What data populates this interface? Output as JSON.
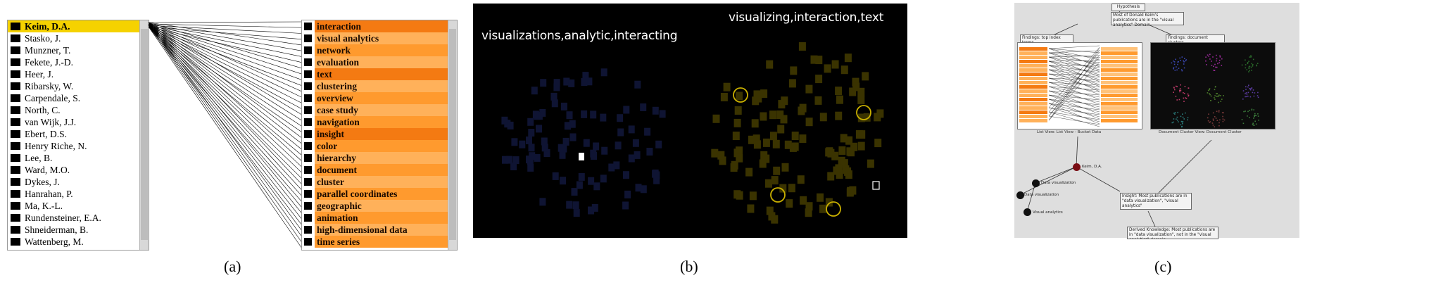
{
  "panel_a": {
    "authors": [
      "Keim, D.A.",
      "Stasko, J.",
      "Munzner, T.",
      "Fekete, J.-D.",
      "Heer, J.",
      "Ribarsky, W.",
      "Carpendale, S.",
      "North, C.",
      "van Wijk, J.J.",
      "Ebert, D.S.",
      "Henry Riche, N.",
      "Lee, B.",
      "Ward, M.O.",
      "Dykes, J.",
      "Hanrahan, P.",
      "Ma, K.-L.",
      "Rundensteiner, E.A.",
      "Shneiderman, B.",
      "Wattenberg, M."
    ],
    "selected_author": 0,
    "keywords": [
      "interaction",
      "visual analytics",
      "network",
      "evaluation",
      "text",
      "clustering",
      "overview",
      "case study",
      "navigation",
      "insight",
      "color",
      "hierarchy",
      "document",
      "cluster",
      "parallel coordinates",
      "geographic",
      "animation",
      "high-dimensional data",
      "time series"
    ],
    "highlight_color": "#f5d200",
    "keyword_color": "#ff9a2e"
  },
  "panel_b": {
    "left_title": "visualizations,analytic,interacting",
    "right_title": "visualizing,interaction,text",
    "left_square_color": "#0f1433",
    "right_square_color": "#3a3300",
    "circle_color": "#c9b000",
    "background": "#000000"
  },
  "panel_c": {
    "hypothesis": "Hypothesis",
    "hypothesis_text": "Most of Donald Keim's publications are in the \"visual analytics\" Domain",
    "finding_left": "Findings: top index terms",
    "finding_right": "Findings: document clusters",
    "caption_left": "List View: List View - Bucket Data",
    "caption_right": "Document Cluster View: Document Cluster",
    "node_main": "Keim, D.A.",
    "node_a": "Data visualization",
    "node_b": "Data visualization",
    "node_c": "Visual analytics",
    "insight": "Insight: Most publications are in \"data visualization\", \"visual analytics\"",
    "derived": "Derived Knowledge: Most publications are in \"data visualization\", not in the \"visual analytics\" domain"
  },
  "captions": {
    "a": "(a)",
    "b": "(b)",
    "c": "(c)"
  }
}
